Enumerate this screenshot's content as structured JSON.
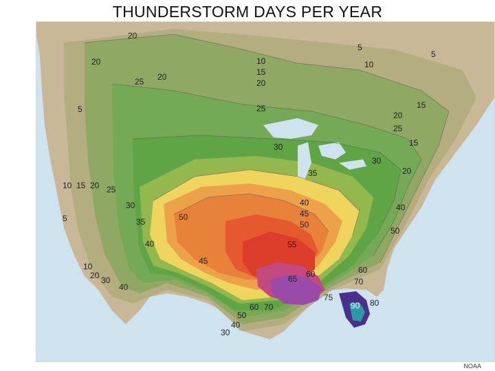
{
  "title": "THUNDERSTORM DAYS PER YEAR",
  "credit": "NOAA",
  "legend_colors": {
    "water": "#cfe3ef",
    "d5": "#c9b897",
    "d10": "#b3ad80",
    "d15": "#9ea66e",
    "d20": "#8fa863",
    "d25": "#74a955",
    "d30": "#5fa546",
    "d35": "#93b84e",
    "d40": "#efd45e",
    "d45": "#eda24a",
    "d50": "#e8823b",
    "d55": "#e6592f",
    "d60": "#dd3e2c",
    "d65": "#c44a7e",
    "d70": "#9a4aa8",
    "d75": "#6e3d9e",
    "d80": "#4a2f8c",
    "d90": "#2a9aa6"
  },
  "contour_labels": [
    {
      "text": "20"
    },
    {
      "text": "20"
    },
    {
      "text": "25"
    },
    {
      "text": "20"
    },
    {
      "text": "5"
    },
    {
      "text": "5"
    },
    {
      "text": "5"
    },
    {
      "text": "10"
    },
    {
      "text": "10"
    },
    {
      "text": "15"
    },
    {
      "text": "20"
    },
    {
      "text": "25"
    },
    {
      "text": "20"
    },
    {
      "text": "15"
    },
    {
      "text": "25"
    },
    {
      "text": "15"
    },
    {
      "text": "30"
    },
    {
      "text": "30"
    },
    {
      "text": "20"
    },
    {
      "text": "35"
    },
    {
      "text": "10"
    },
    {
      "text": "15"
    },
    {
      "text": "20"
    },
    {
      "text": "25"
    },
    {
      "text": "30"
    },
    {
      "text": "5"
    },
    {
      "text": "35"
    },
    {
      "text": "50"
    },
    {
      "text": "40"
    },
    {
      "text": "45"
    },
    {
      "text": "50"
    },
    {
      "text": "40"
    },
    {
      "text": "50"
    },
    {
      "text": "55"
    },
    {
      "text": "40"
    },
    {
      "text": "45"
    },
    {
      "text": "60"
    },
    {
      "text": "65"
    },
    {
      "text": "60"
    },
    {
      "text": "70"
    },
    {
      "text": "10"
    },
    {
      "text": "20"
    },
    {
      "text": "30"
    },
    {
      "text": "40"
    },
    {
      "text": "75"
    },
    {
      "text": "80"
    },
    {
      "text": "90"
    },
    {
      "text": "60"
    },
    {
      "text": "70"
    },
    {
      "text": "50"
    },
    {
      "text": "40"
    },
    {
      "text": "30"
    }
  ]
}
